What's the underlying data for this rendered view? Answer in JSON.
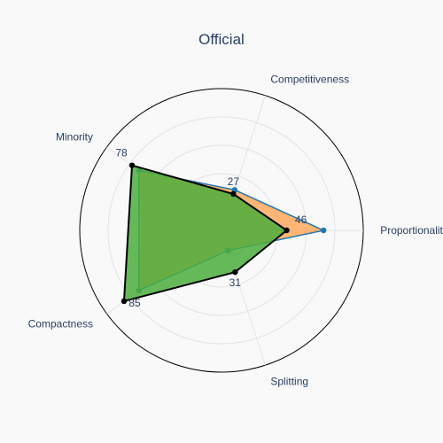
{
  "chart_data": {
    "type": "radar",
    "title": "Official",
    "axes": [
      "Proportionality",
      "Competitiveness",
      "Minority",
      "Compactness",
      "Splitting"
    ],
    "range": [
      0,
      100
    ],
    "grid": true,
    "series": [
      {
        "values": [
          72,
          30,
          72,
          72,
          15
        ],
        "line_color": "#1f77b4",
        "fill_color": "#ff9f4a"
      },
      {
        "values": [
          46,
          27,
          78,
          85,
          31
        ],
        "line_color": "#000000",
        "fill_color": "#4cae3c"
      }
    ],
    "data_labels": [
      {
        "axis": "Proportionality",
        "text": "46"
      },
      {
        "axis": "Competitiveness",
        "text": "27"
      },
      {
        "axis": "Minority",
        "text": "78"
      },
      {
        "axis": "Compactness",
        "text": "85"
      },
      {
        "axis": "Splitting",
        "text": "31"
      }
    ]
  }
}
